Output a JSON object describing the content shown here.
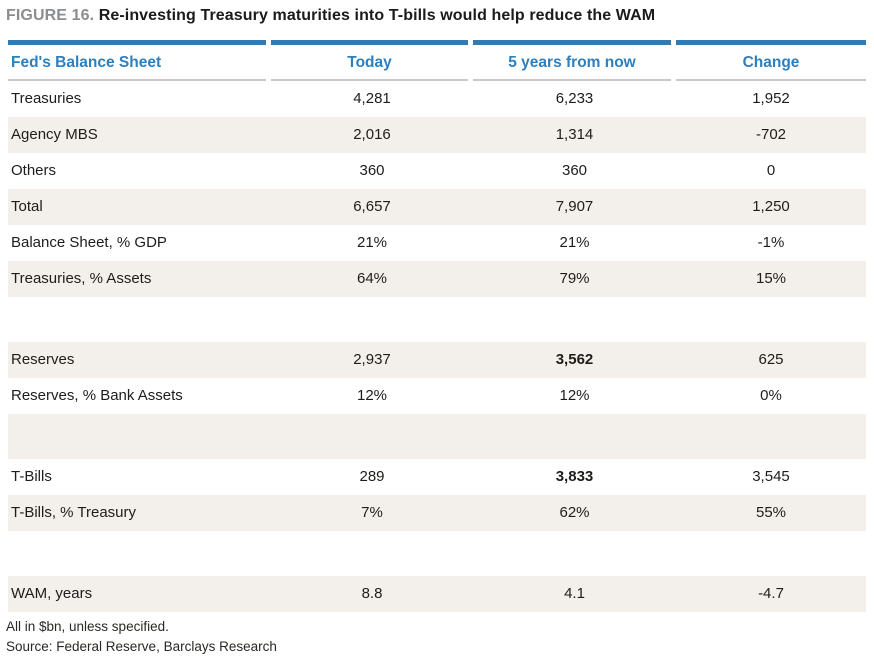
{
  "figure": {
    "label": "FIGURE 16.",
    "title": "Re-investing Treasury maturities into T-bills would help reduce the WAM"
  },
  "table": {
    "columns": [
      "Fed's Balance Sheet",
      "Today",
      "5 years from now",
      "Change"
    ],
    "rows": [
      {
        "label": "Treasuries",
        "today": "4,281",
        "future": "6,233",
        "change": "1,952",
        "bold_future": false,
        "spacer": false
      },
      {
        "label": "Agency MBS",
        "today": "2,016",
        "future": "1,314",
        "change": "-702",
        "bold_future": false,
        "spacer": false
      },
      {
        "label": "Others",
        "today": "360",
        "future": "360",
        "change": "0",
        "bold_future": false,
        "spacer": false
      },
      {
        "label": "Total",
        "today": "6,657",
        "future": "7,907",
        "change": "1,250",
        "bold_future": false,
        "spacer": false
      },
      {
        "label": "Balance Sheet, % GDP",
        "today": "21%",
        "future": "21%",
        "change": "-1%",
        "bold_future": false,
        "spacer": false
      },
      {
        "label": "Treasuries, % Assets",
        "today": "64%",
        "future": "79%",
        "change": "15%",
        "bold_future": false,
        "spacer": false
      },
      {
        "label": "",
        "today": "",
        "future": "",
        "change": "",
        "bold_future": false,
        "spacer": true
      },
      {
        "label": "Reserves",
        "today": "2,937",
        "future": "3,562",
        "change": "625",
        "bold_future": true,
        "spacer": false
      },
      {
        "label": "Reserves, % Bank Assets",
        "today": "12%",
        "future": "12%",
        "change": "0%",
        "bold_future": false,
        "spacer": false
      },
      {
        "label": "",
        "today": "",
        "future": "",
        "change": "",
        "bold_future": false,
        "spacer": true
      },
      {
        "label": "T-Bills",
        "today": "289",
        "future": "3,833",
        "change": "3,545",
        "bold_future": true,
        "spacer": false
      },
      {
        "label": "T-Bills, % Treasury",
        "today": "7%",
        "future": "62%",
        "change": "55%",
        "bold_future": false,
        "spacer": false
      },
      {
        "label": "",
        "today": "",
        "future": "",
        "change": "",
        "bold_future": false,
        "spacer": true
      },
      {
        "label": "WAM, years",
        "today": "8.8",
        "future": "4.1",
        "change": "-4.7",
        "bold_future": false,
        "spacer": false
      }
    ]
  },
  "footnotes": {
    "units": "All in $bn, unless specified.",
    "source": "Source: Federal Reserve, Barclays Research"
  },
  "colors": {
    "accent_blue": "#3579ad",
    "header_text_blue": "#2d7fbe",
    "row_alt_bg": "#f3efea",
    "title_gray": "#8b8d90"
  }
}
